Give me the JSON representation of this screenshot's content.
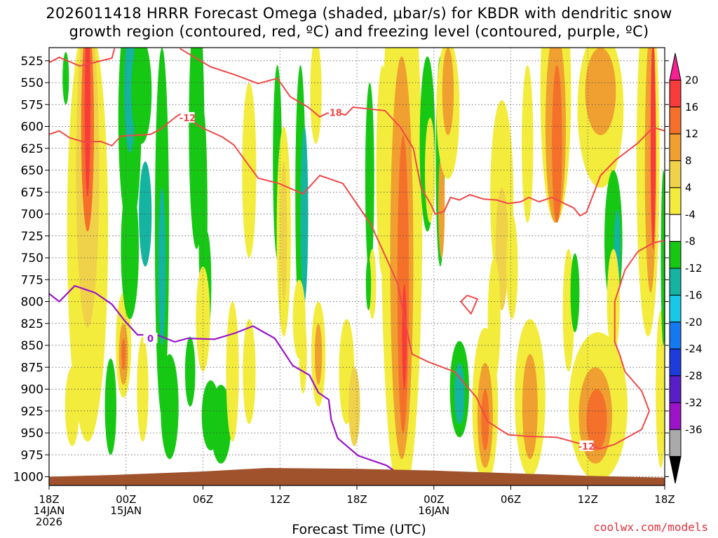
{
  "chart_data": {
    "type": "heatmap",
    "title_line1": "2026011418 HRRR Forecast Omega (shaded, μbar/s) for KBDR with dendritic snow",
    "title_line2": "growth region (contoured, red, ºC) and freezing level (contoured, purple, ºC)",
    "xlabel": "Forecast Time (UTC)",
    "y_ticks": [
      525,
      550,
      575,
      600,
      625,
      650,
      675,
      700,
      725,
      750,
      775,
      800,
      825,
      850,
      875,
      900,
      925,
      950,
      975,
      1000
    ],
    "y_range": [
      510,
      1010
    ],
    "x_range_hours": [
      0,
      48
    ],
    "x_ticks": [
      {
        "hour": 0,
        "lines": [
          "18Z",
          "14JAN",
          "2026"
        ]
      },
      {
        "hour": 6,
        "lines": [
          "00Z",
          "15JAN"
        ]
      },
      {
        "hour": 12,
        "lines": [
          "06Z"
        ]
      },
      {
        "hour": 18,
        "lines": [
          "12Z"
        ]
      },
      {
        "hour": 24,
        "lines": [
          "18Z"
        ]
      },
      {
        "hour": 30,
        "lines": [
          "00Z",
          "16JAN"
        ]
      },
      {
        "hour": 36,
        "lines": [
          "06Z"
        ]
      },
      {
        "hour": 42,
        "lines": [
          "12Z"
        ]
      },
      {
        "hour": 48,
        "lines": [
          "18Z"
        ]
      }
    ],
    "colorbar": {
      "labels": [
        "20",
        "16",
        "12",
        "8",
        "4",
        "-4",
        "-8",
        "-12",
        "-16",
        "-20",
        "-24",
        "-28",
        "-32",
        "-36"
      ],
      "colors": [
        "#f72090",
        "#f83c3c",
        "#f5702a",
        "#f0a030",
        "#f0d24a",
        "#f3ec3c",
        "#ffffff",
        "#16c814",
        "#14b4a0",
        "#18c8e6",
        "#1478f0",
        "#1e3cdc",
        "#5a1ec8",
        "#9b14c8",
        "#aaaaaa",
        "#000000"
      ]
    },
    "contours": {
      "dgz_labels": [
        "-12",
        "-18",
        "-12"
      ],
      "freezing_label": "0",
      "dgz_color": "#f04848",
      "freezing_color": "#9b14c8"
    },
    "terrain_color": "#a0522d"
  },
  "credit": "coolwx.com/models"
}
